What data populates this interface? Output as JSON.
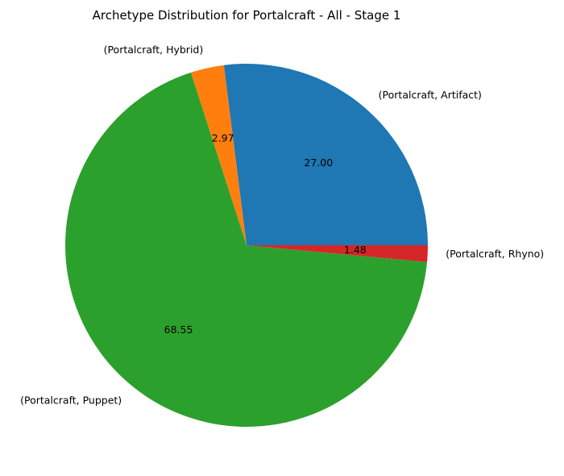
{
  "chart_data": {
    "type": "pie",
    "title": "Archetype Distribution for Portalcraft - All - Stage 1",
    "slices": [
      {
        "label": "(Portalcraft, Artifact)",
        "value": 27.0,
        "value_label": "27.00",
        "color": "#1f77b4"
      },
      {
        "label": "(Portalcraft, Hybrid)",
        "value": 2.97,
        "value_label": "2.97",
        "color": "#ff7f0e"
      },
      {
        "label": "(Portalcraft, Puppet)",
        "value": 68.55,
        "value_label": "68.55",
        "color": "#2ca02c"
      },
      {
        "label": "(Portalcraft, Rhyno)",
        "value": 1.48,
        "value_label": "1.48",
        "color": "#d62728"
      }
    ],
    "start_angle_deg": 0,
    "direction": "counterclockwise",
    "legend": "none"
  }
}
